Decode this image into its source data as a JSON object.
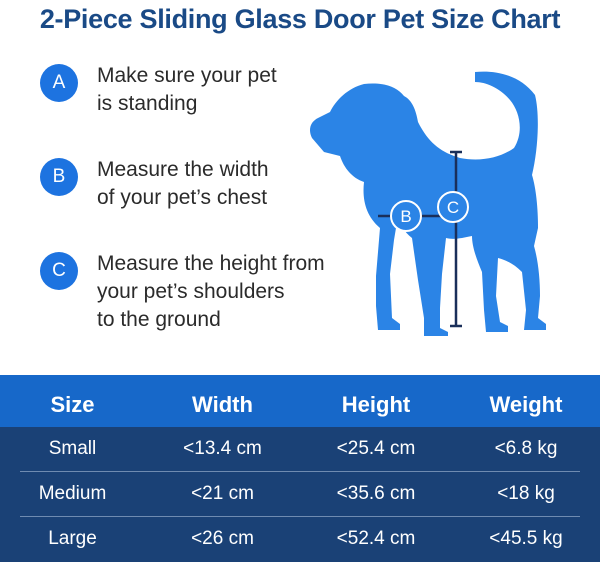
{
  "title": "2-Piece Sliding Glass Door Pet Size Chart",
  "steps": [
    {
      "letter": "A",
      "lines": [
        "Make sure your pet",
        "is standing"
      ]
    },
    {
      "letter": "B",
      "lines": [
        "Measure the width",
        "of your pet’s chest"
      ]
    },
    {
      "letter": "C",
      "lines": [
        "Measure the height from",
        "your pet’s shoulders",
        "to the ground"
      ]
    }
  ],
  "diagram": {
    "label_b": "B",
    "label_c": "C"
  },
  "table": {
    "headers": [
      "Size",
      "Width",
      "Height",
      "Weight"
    ],
    "rows": [
      [
        "Small",
        "<13.4 cm",
        "<25.4 cm",
        "<6.8 kg"
      ],
      [
        "Medium",
        "<21 cm",
        "<35.6 cm",
        "<18 kg"
      ],
      [
        "Large",
        "<26 cm",
        "<52.4 cm",
        "<45.5 kg"
      ]
    ]
  },
  "colors": {
    "title": "#1a4a86",
    "accent": "#1d73e0",
    "header_bg": "#1768c9",
    "body_bg": "#1a4176",
    "dog": "#2b84e6"
  }
}
